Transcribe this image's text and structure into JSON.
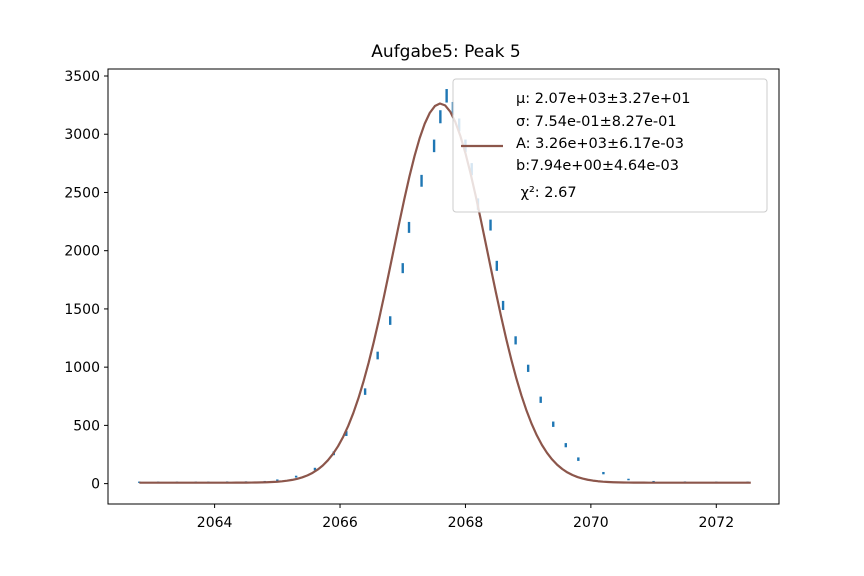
{
  "chart_data": {
    "type": "line",
    "title": "Aufgabe5: Peak 5",
    "xlabel": "",
    "ylabel": "",
    "xlim": [
      2062.3,
      2073.0
    ],
    "ylim": [
      -175,
      3560
    ],
    "xticks": [
      2064,
      2066,
      2068,
      2070,
      2072
    ],
    "xtick_labels": [
      "2064",
      "2066",
      "2068",
      "2070",
      "2072"
    ],
    "yticks": [
      0,
      500,
      1000,
      1500,
      2000,
      2500,
      3000,
      3500
    ],
    "ytick_labels": [
      "0",
      "500",
      "1000",
      "1500",
      "2000",
      "2500",
      "3000",
      "3500"
    ],
    "grid": false,
    "legend_position": "top-right",
    "legend": {
      "label_lines": [
        "μ: 2.07e+03±3.27e+01",
        "σ: 7.54e-01±8.27e-01",
        "A: 3.26e+03±6.17e-03",
        "b:7.94e+00±4.64e-03",
        " χ²: 2.67"
      ]
    },
    "colors": {
      "data": "#1f77b4",
      "fit": "#8c564b"
    },
    "series": [
      {
        "kind": "errorbar",
        "x": [
          2062.8,
          2063.1,
          2063.4,
          2063.7,
          2063.9,
          2064.2,
          2064.5,
          2064.8,
          2065.0,
          2065.3,
          2065.6,
          2065.9,
          2066.1,
          2066.4,
          2066.6,
          2066.8,
          2067.0,
          2067.1,
          2067.3,
          2067.5,
          2067.6,
          2067.7,
          2067.8,
          2067.9,
          2068.0,
          2068.1,
          2068.2,
          2068.4,
          2068.5,
          2068.6,
          2068.8,
          2069.0,
          2069.2,
          2069.4,
          2069.6,
          2069.8,
          2070.2,
          2070.6,
          2071.0,
          2071.5,
          2072.0,
          2072.5
        ],
        "y": [
          8,
          8,
          8,
          8,
          8,
          9,
          10,
          14,
          28,
          60,
          125,
          260,
          430,
          790,
          1100,
          1400,
          1850,
          2200,
          2600,
          2900,
          3150,
          3330,
          3220,
          3080,
          2900,
          2700,
          2400,
          2220,
          1870,
          1530,
          1230,
          990,
          720,
          510,
          330,
          210,
          90,
          35,
          14,
          9,
          8,
          8
        ],
        "yerr": [
          3,
          3,
          3,
          3,
          3,
          3,
          3,
          4,
          5,
          8,
          11,
          16,
          21,
          28,
          33,
          37,
          43,
          47,
          51,
          54,
          56,
          58,
          57,
          55,
          54,
          52,
          49,
          47,
          43,
          39,
          35,
          31,
          27,
          23,
          18,
          15,
          10,
          6,
          4,
          3,
          3,
          3
        ]
      },
      {
        "kind": "fit",
        "function": "gaussian",
        "mu": 2067.6,
        "sigma": 0.754,
        "A": 3256,
        "b": 7.94,
        "x_range": [
          2062.8,
          2072.55
        ]
      }
    ]
  }
}
